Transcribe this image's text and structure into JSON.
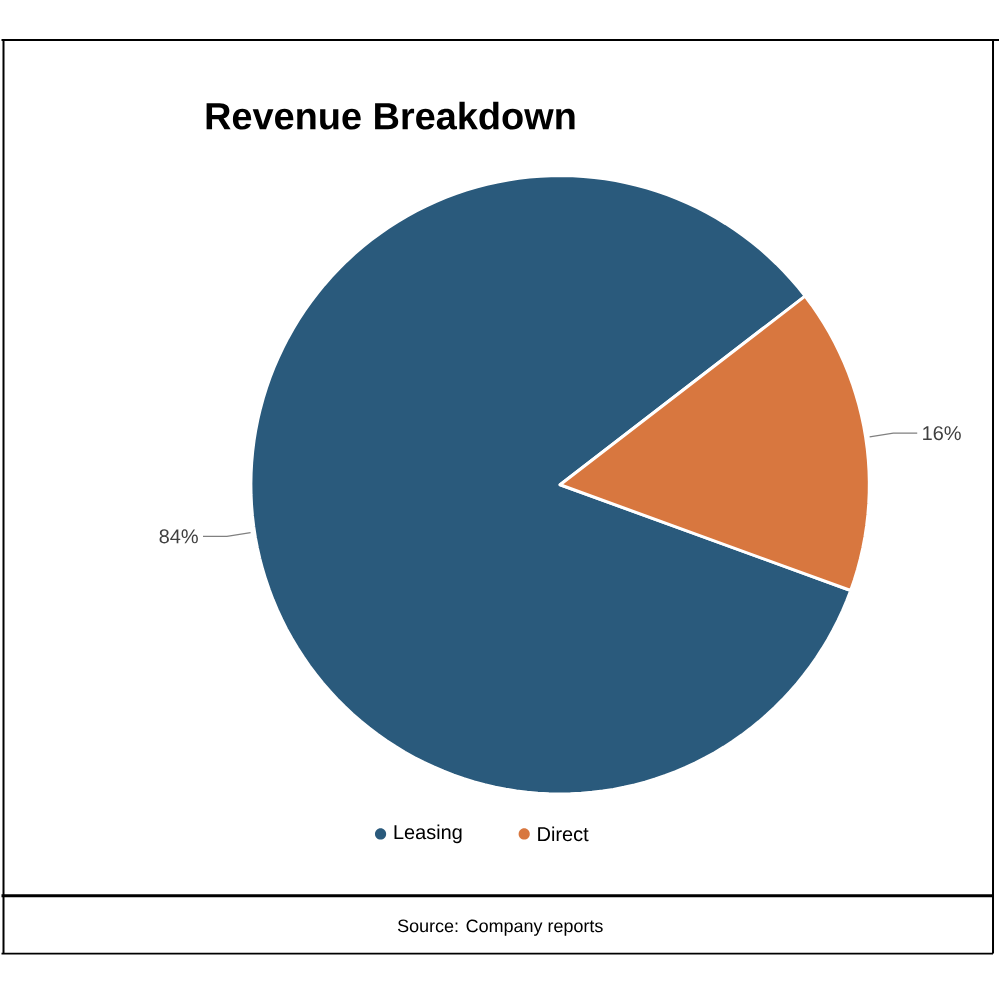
{
  "chart_data": {
    "type": "pie",
    "title": "Revenue Breakdown",
    "categories": [
      "Leasing",
      "Direct"
    ],
    "values": [
      84,
      16
    ],
    "colors": [
      "#2a5a7c",
      "#d8773f"
    ],
    "value_labels": [
      "84%",
      "16%"
    ],
    "legend": "bottom",
    "annotations": [
      "Source: Company reports"
    ]
  }
}
